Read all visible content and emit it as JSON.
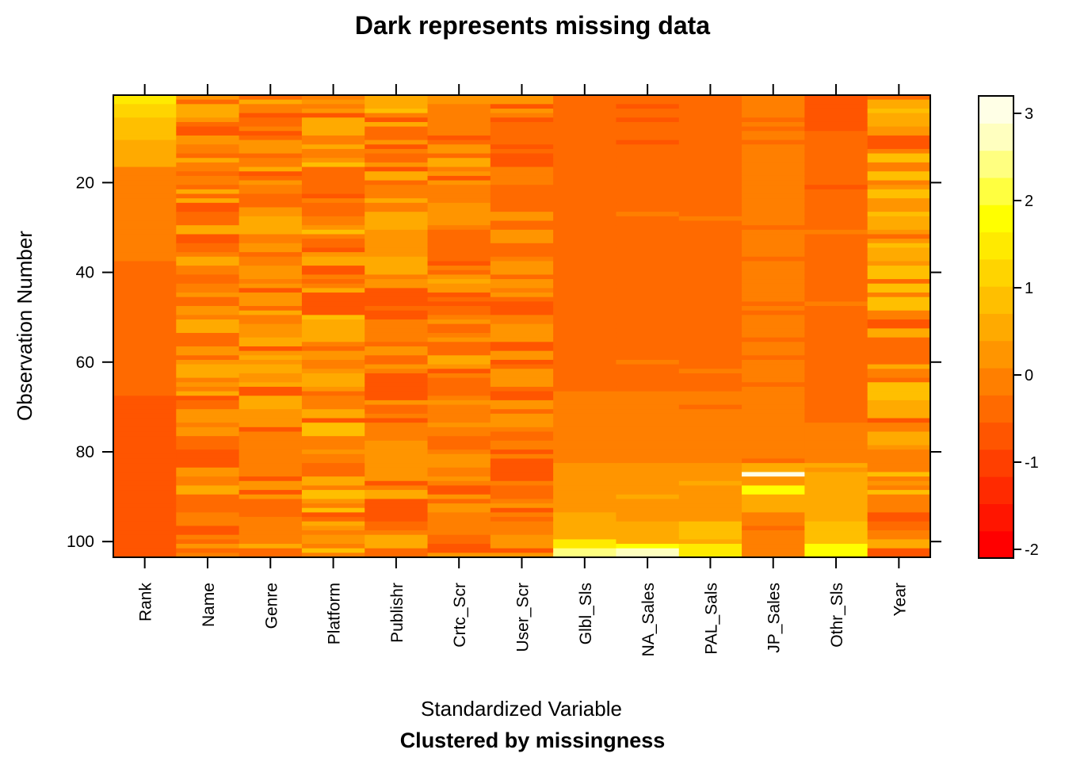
{
  "chart_data": {
    "type": "heatmap",
    "title": "Dark represents missing data",
    "xlabel": "Standardized Variable",
    "subtitle": "Clustered by missingness",
    "ylabel": "Observation Number",
    "variables": [
      "Rank",
      "Name",
      "Genre",
      "Platform",
      "Publishr",
      "Crtc_Scr",
      "User_Scr",
      "Glbl_Sls",
      "NA_Sales",
      "PAL_Sals",
      "JP_Sales",
      "Othr_Sls",
      "Year"
    ],
    "y_ticks": [
      20,
      40,
      60,
      80,
      100
    ],
    "ylim": [
      1,
      103
    ],
    "colorbar": {
      "min": -2.1,
      "max": 3.2,
      "ticks": [
        3,
        2,
        1,
        0,
        -1,
        -2
      ],
      "palette": [
        "#FF0000",
        "#FF1500",
        "#FF2A00",
        "#FF3F00",
        "#FF5500",
        "#FF6A00",
        "#FF7F00",
        "#FF9500",
        "#FFAA00",
        "#FFBF00",
        "#FFD400",
        "#FFEA00",
        "#FFFF00",
        "#FFFF40",
        "#FFFF80",
        "#FFFFBF",
        "#FFFFE6"
      ]
    },
    "column_profiles": [
      {
        "variable": "Rank",
        "segments": [
          [
            1,
            2,
            1.6
          ],
          [
            3,
            5,
            1.2
          ],
          [
            6,
            10,
            0.9
          ],
          [
            11,
            16,
            0.65
          ],
          [
            17,
            37,
            0.05
          ],
          [
            38,
            67,
            -0.3
          ],
          [
            68,
            103,
            -0.6
          ]
        ]
      },
      {
        "variable": "Name",
        "segments": [],
        "noise": {
          "mean": -0.1,
          "spread": 0.75
        }
      },
      {
        "variable": "Genre",
        "segments": [],
        "noise": {
          "mean": -0.1,
          "spread": 0.75
        }
      },
      {
        "variable": "Platform",
        "segments": [],
        "noise": {
          "mean": 0.1,
          "spread": 0.75
        }
      },
      {
        "variable": "Publishr",
        "segments": [],
        "noise": {
          "mean": 0.0,
          "spread": 0.75
        }
      },
      {
        "variable": "Crtc_Scr",
        "segments": [],
        "noise": {
          "mean": -0.1,
          "spread": 0.55
        }
      },
      {
        "variable": "User_Scr",
        "segments": [],
        "noise": {
          "mean": -0.2,
          "spread": 0.6
        }
      },
      {
        "variable": "Glbl_Sls",
        "segments": [
          [
            1,
            30,
            -0.45
          ],
          [
            31,
            66,
            -0.35
          ],
          [
            67,
            82,
            -0.05
          ],
          [
            83,
            93,
            0.35
          ],
          [
            94,
            99,
            0.7
          ],
          [
            100,
            101,
            1.4
          ],
          [
            102,
            103,
            2.3
          ]
        ]
      },
      {
        "variable": "NA_Sales",
        "segments": [
          [
            1,
            12,
            -0.45
          ],
          [
            13,
            66,
            -0.35
          ],
          [
            67,
            82,
            -0.1
          ],
          [
            83,
            95,
            0.3
          ],
          [
            96,
            100,
            0.7
          ],
          [
            101,
            101,
            1.7
          ],
          [
            102,
            103,
            2.8
          ]
        ],
        "noise": {
          "mean": 0.0,
          "spread": 0.3
        }
      },
      {
        "variable": "PAL_Sals",
        "segments": [
          [
            1,
            12,
            -0.45
          ],
          [
            13,
            66,
            -0.35
          ],
          [
            67,
            82,
            -0.1
          ],
          [
            83,
            95,
            0.35
          ],
          [
            96,
            100,
            0.8
          ],
          [
            101,
            103,
            1.5
          ]
        ],
        "noise": {
          "mean": 0.0,
          "spread": 0.3
        }
      },
      {
        "variable": "JP_Sales",
        "segments": [
          [
            1,
            82,
            -0.2
          ],
          [
            83,
            84,
            0.6
          ],
          [
            85,
            85,
            3.2
          ],
          [
            86,
            87,
            0.3
          ],
          [
            88,
            89,
            1.7
          ],
          [
            90,
            93,
            0.5
          ],
          [
            94,
            103,
            -0.15
          ]
        ],
        "noise": {
          "mean": 0.0,
          "spread": 0.3
        }
      },
      {
        "variable": "Othr_Sls",
        "segments": [
          [
            1,
            8,
            -0.55
          ],
          [
            9,
            30,
            -0.45
          ],
          [
            31,
            73,
            -0.35
          ],
          [
            74,
            82,
            -0.1
          ],
          [
            83,
            95,
            0.4
          ],
          [
            96,
            100,
            0.8
          ],
          [
            101,
            103,
            1.8
          ]
        ],
        "noise": {
          "mean": 0.0,
          "spread": 0.3
        }
      },
      {
        "variable": "Year",
        "segments": [],
        "noise": {
          "mean": 0.1,
          "spread": 0.8
        }
      }
    ]
  }
}
